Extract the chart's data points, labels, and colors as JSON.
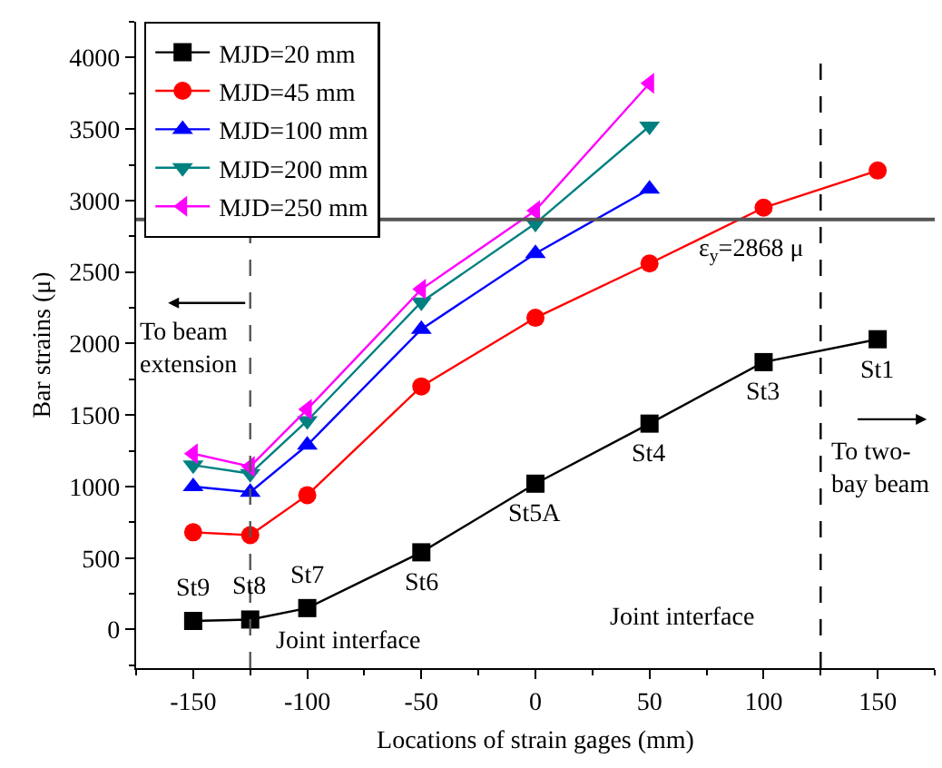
{
  "chart_data": {
    "type": "line",
    "xlabel": "Locations of strain gages (mm)",
    "ylabel": "Bar strains (μ)",
    "x": [
      -150,
      -125,
      -100,
      -50,
      0,
      50,
      100,
      150
    ],
    "series": [
      {
        "name": "MJD=20 mm",
        "color": "#000000",
        "marker": "square",
        "values": [
          60,
          70,
          150,
          540,
          1020,
          1440,
          1870,
          2030
        ]
      },
      {
        "name": "MJD=45 mm",
        "color": "#ff0000",
        "marker": "circle",
        "values": [
          680,
          660,
          940,
          1700,
          2180,
          2560,
          2950,
          3210
        ]
      },
      {
        "name": "MJD=100 mm",
        "color": "#0000ff",
        "marker": "triangle-up",
        "values": [
          1000,
          960,
          1290,
          2100,
          2630,
          3080,
          null,
          null
        ]
      },
      {
        "name": "MJD=200 mm",
        "color": "#008080",
        "marker": "triangle-down",
        "values": [
          1150,
          1090,
          1460,
          2290,
          2840,
          3520,
          null,
          null
        ]
      },
      {
        "name": "MJD=250 mm",
        "color": "#ff00ff",
        "marker": "triangle-left",
        "values": [
          1230,
          1140,
          1540,
          2380,
          2930,
          3820,
          null,
          null
        ]
      }
    ],
    "xlim": [
      -175,
      175
    ],
    "xticks": [
      -150,
      -100,
      -50,
      0,
      50,
      100,
      150
    ],
    "ylim": [
      -270,
      4250
    ],
    "yticks": [
      0,
      500,
      1000,
      1500,
      2000,
      2500,
      3000,
      3500,
      4000
    ],
    "grid": false,
    "legend": "top left",
    "line_style": "solid",
    "ref_lines": [
      {
        "axis": "y",
        "value": 2868,
        "label": "ε$_{y}$=2868 μ",
        "color": "#555555",
        "line_style": "solid"
      },
      {
        "axis": "x",
        "value": -125,
        "color": "#555555",
        "line_style": "dashed"
      },
      {
        "axis": "x",
        "value": 125,
        "color": "#000000",
        "line_style": "dashed"
      }
    ],
    "annotations": [
      {
        "text": "St9",
        "x": -150,
        "y": 60
      },
      {
        "text": "St8",
        "x": -125,
        "y": 70
      },
      {
        "text": "St7",
        "x": -100,
        "y": 150
      },
      {
        "text": "St6",
        "x": -50,
        "y": 540
      },
      {
        "text": "St5A",
        "x": 0,
        "y": 1020
      },
      {
        "text": "St4",
        "x": 50,
        "y": 1440
      },
      {
        "text": "St3",
        "x": 100,
        "y": 1870
      },
      {
        "text": "St1",
        "x": 150,
        "y": 2030
      },
      "Joint interface",
      "Joint interface",
      "To beam\nextension",
      "To two-\nbay beam"
    ]
  }
}
